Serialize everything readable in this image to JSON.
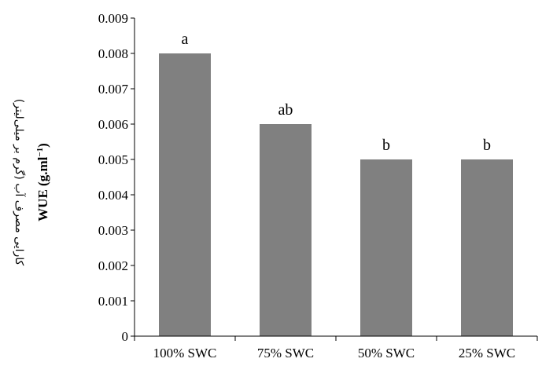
{
  "chart_data": {
    "type": "bar",
    "categories": [
      "100% SWC",
      "75% SWC",
      "50% SWC",
      "25% SWC"
    ],
    "values": [
      0.008,
      0.006,
      0.005,
      0.005
    ],
    "data_labels": [
      "a",
      "ab",
      "b",
      "b"
    ],
    "ylabel_fa": "کارایی مصرف آب (گرم بر میلی‌لیتر)",
    "ylabel_en": "WUE (g.ml",
    "ylabel_en_sup": "−1",
    "ylabel_en_close": ")",
    "ylim": [
      0,
      0.009
    ],
    "yticks": [
      "0",
      "0.001",
      "0.002",
      "0.003",
      "0.004",
      "0.005",
      "0.006",
      "0.007",
      "0.008",
      "0.009"
    ],
    "bar_color": "#808080",
    "grid": false,
    "legend": "none"
  }
}
